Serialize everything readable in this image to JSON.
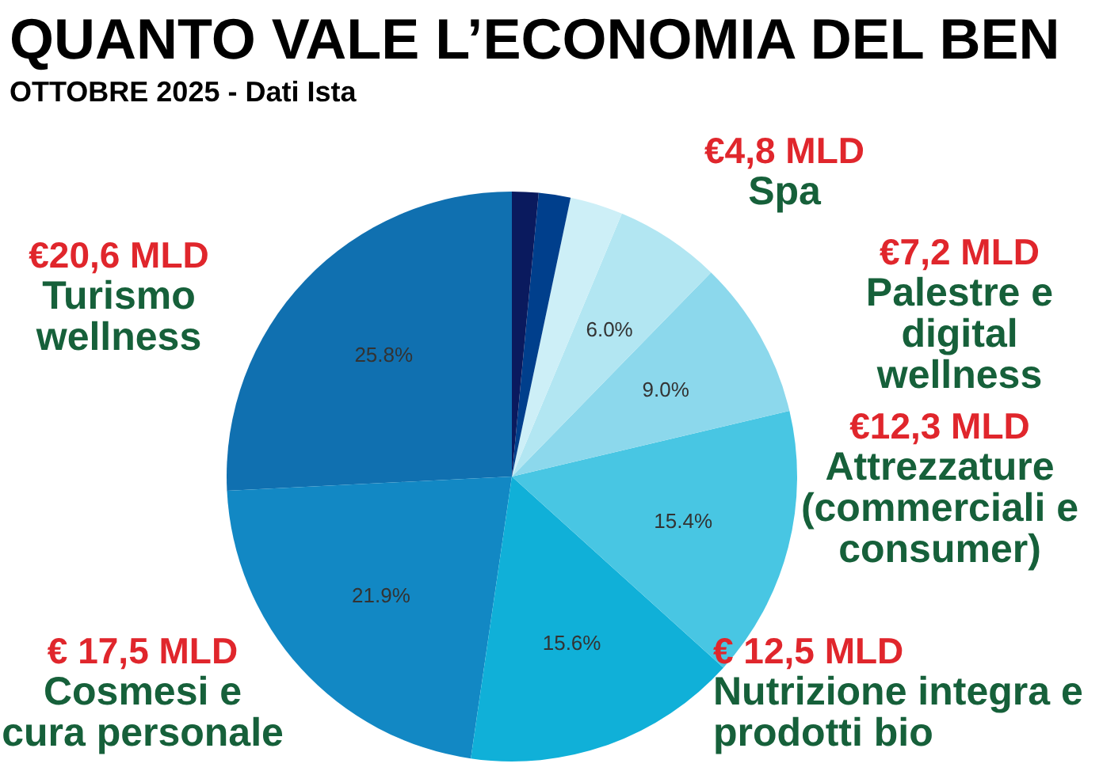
{
  "chart_data": {
    "type": "pie",
    "title": "QUANTO VALE L’ECONOMIA DEL BEN",
    "subtitle": "OTTOBRE 2025 - Dati Ista",
    "categories": [
      "Turismo wellness",
      "Cosmesi e cura personale",
      "Nutrizione integra e prodotti bio",
      "Attrezzature (commerciali e consumer)",
      "Palestre e digital wellness",
      "Spa",
      null,
      null,
      null
    ],
    "values": [
      25.8,
      21.9,
      15.6,
      15.4,
      9.0,
      6.0,
      3.0,
      1.8,
      1.5
    ],
    "colors": [
      "#1070b0",
      "#1288c4",
      "#10b0d8",
      "#48c6e3",
      "#8cd8ec",
      "#b2e6f2",
      "#cdeff7",
      "#003f8c",
      "#0a1a5e"
    ],
    "value_labels": [
      "25.8%",
      "21.9%",
      "15.6%",
      "15.4%",
      "9.0%",
      "6.0%",
      null,
      null,
      null
    ],
    "annotations": [
      {
        "text": "€20,6 MLD",
        "x": "Turismo wellness"
      },
      {
        "text": "€ 17,5 MLD",
        "x": "Cosmesi e cura personale"
      },
      {
        "text": "€ 12,5 MLD",
        "x": "Nutrizione integra e prodotti bio"
      },
      {
        "text": "€12,3 MLD",
        "x": "Attrezzature (commerciali e consumer)"
      },
      {
        "text": "€7,2 MLD",
        "x": "Palestre e digital wellness"
      },
      {
        "text": "€4,8 MLD",
        "x": "Spa"
      }
    ],
    "legend": false
  }
}
